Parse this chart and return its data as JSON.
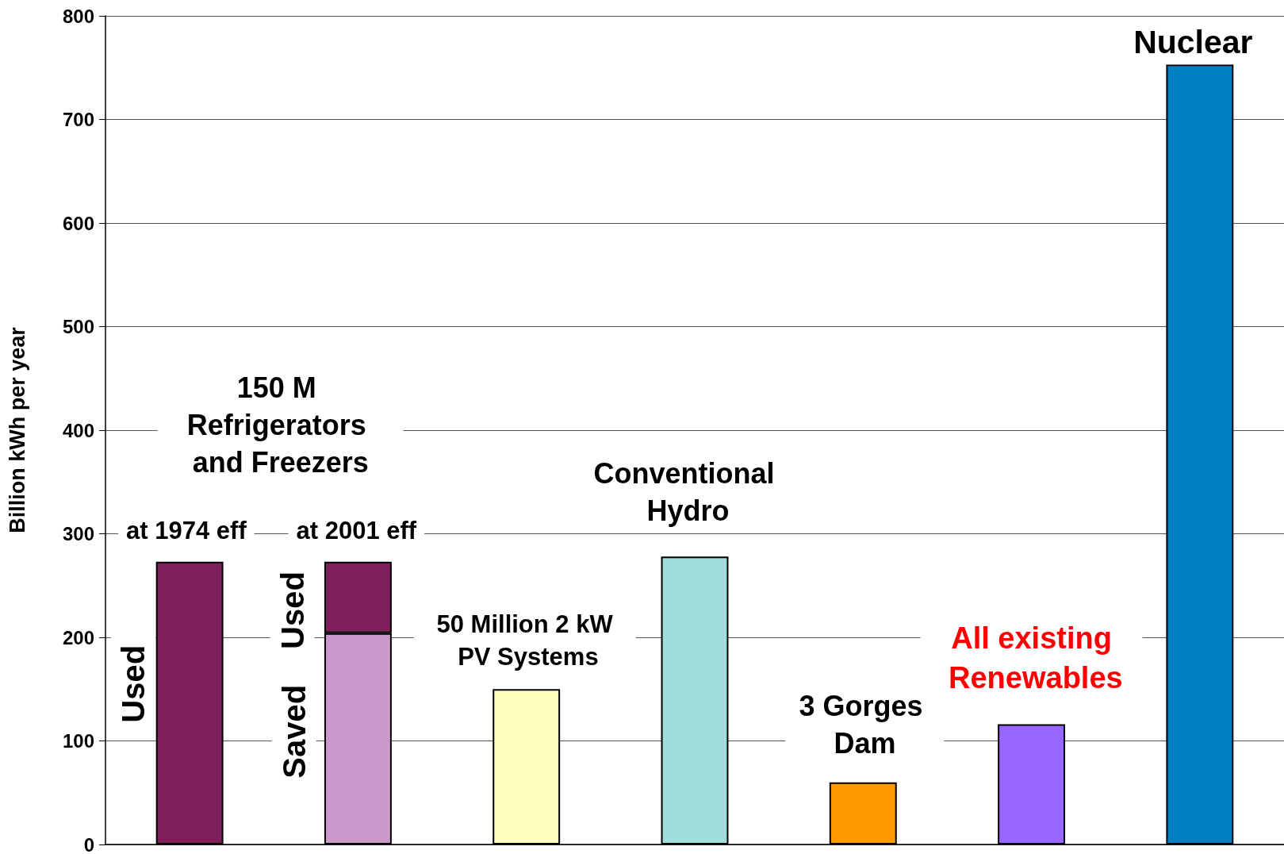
{
  "chart_data": {
    "type": "bar",
    "ylabel": "Billion kWh per year",
    "categories": [
      null,
      null,
      null,
      null,
      null,
      null,
      null
    ],
    "stacked": true,
    "series": [
      {
        "colors": [
          "#7f1f5b",
          "#cc99cc",
          "#ffffc0",
          "#a0dede",
          "#ff9900",
          "#9966ff",
          "#0080c0"
        ],
        "values": [
          273,
          204,
          150,
          278,
          60,
          116,
          753
        ]
      },
      {
        "color": "#7f1f5b",
        "values": [
          null,
          69,
          null,
          null,
          null,
          null,
          null
        ]
      }
    ],
    "ylim": [
      0,
      800
    ],
    "yticks": [
      0,
      100,
      200,
      300,
      400,
      500,
      600,
      700,
      800
    ],
    "grid": "y",
    "legend": false,
    "annotations": [
      "150 M Refrigerators and Freezers",
      "at 1974 eff",
      "at 2001 eff",
      "Used",
      "Saved",
      "Used",
      "50 Million 2 kW PV Systems",
      "Conventional Hydro",
      "3 Gorges Dam",
      "All existing Renewables",
      "Nuclear"
    ]
  }
}
